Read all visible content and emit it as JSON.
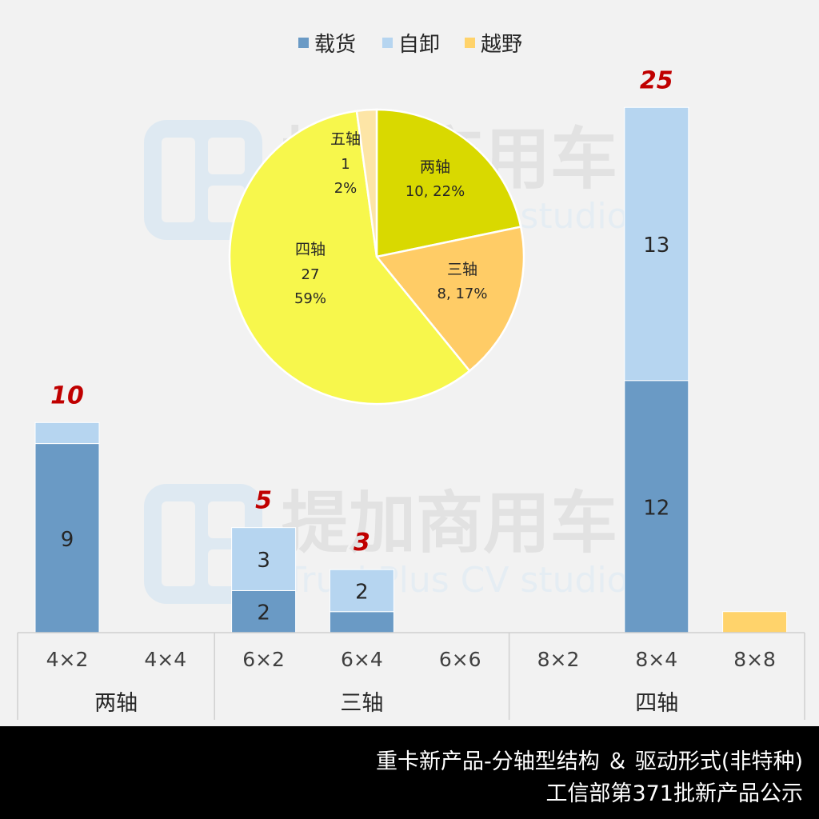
{
  "chart_data": [
    {
      "type": "bar",
      "stacked": true,
      "legend": {
        "placement": "top",
        "entries": [
          "载货",
          "自卸",
          "越野"
        ]
      },
      "categories": [
        "4×2",
        "4×4",
        "6×2",
        "6×4",
        "6×6",
        "8×2",
        "8×4",
        "8×8"
      ],
      "groups": [
        {
          "label": "两轴",
          "categories": [
            "4×2",
            "4×4"
          ]
        },
        {
          "label": "三轴",
          "categories": [
            "6×2",
            "6×4",
            "6×6"
          ]
        },
        {
          "label": "四轴",
          "categories": [
            "8×2",
            "8×4",
            "8×8"
          ]
        }
      ],
      "series": [
        {
          "name": "载货",
          "color": "#6a9ac5",
          "values": [
            9,
            0,
            2,
            1,
            0,
            0,
            12,
            0
          ]
        },
        {
          "name": "自卸",
          "color": "#b6d5f0",
          "values": [
            1,
            0,
            3,
            2,
            0,
            0,
            13,
            0
          ]
        },
        {
          "name": "越野",
          "color": "#ffd36b",
          "values": [
            0,
            0,
            0,
            0,
            0,
            0,
            0,
            1
          ]
        }
      ],
      "segment_labels": [
        {
          "category": "4×2",
          "series": "载货",
          "text": "9"
        },
        {
          "category": "6×2",
          "series": "载货",
          "text": "2"
        },
        {
          "category": "6×2",
          "series": "自卸",
          "text": "3"
        },
        {
          "category": "6×4",
          "series": "自卸",
          "text": "2"
        },
        {
          "category": "8×4",
          "series": "载货",
          "text": "12"
        },
        {
          "category": "8×4",
          "series": "自卸",
          "text": "13"
        }
      ],
      "totals": [
        {
          "category": "4×2",
          "text": "10"
        },
        {
          "category": "6×2",
          "text": "5"
        },
        {
          "category": "6×4",
          "text": "3"
        },
        {
          "category": "8×4",
          "text": "25"
        }
      ],
      "ylim": [
        0,
        26
      ],
      "grid": false,
      "total_color": "#c00000"
    },
    {
      "type": "pie",
      "slices": [
        {
          "label": "两轴",
          "value": 10,
          "percent": 22,
          "text": "10, 22%",
          "color": "#d9d900"
        },
        {
          "label": "三轴",
          "value": 8,
          "percent": 17,
          "text": "8, 17%",
          "color": "#ffcc66"
        },
        {
          "label": "四轴",
          "value": 27,
          "percent": 59,
          "text_value": "27",
          "text_percent": "59%",
          "color": "#f7f74c"
        },
        {
          "label": "五轴",
          "value": 1,
          "percent": 2,
          "text_value": "1",
          "text_percent": "2%",
          "color": "#fde5a6"
        }
      ]
    }
  ],
  "watermark": {
    "brand": "提加商用车",
    "sub": "TruckPlus CV studio"
  },
  "footer": {
    "line1": "重卡新产品-分轴型结构 ＆ 驱动形式(非特种)",
    "line2": "工信部第371批新产品公示"
  }
}
